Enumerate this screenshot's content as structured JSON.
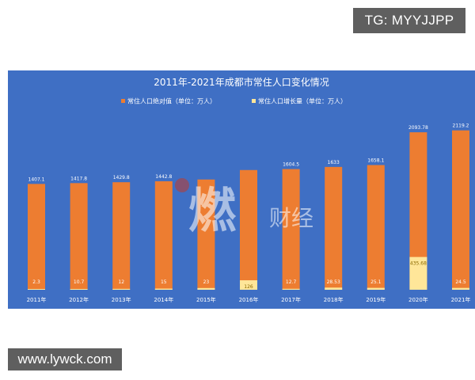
{
  "overlay": {
    "top_right_text": "TG: MYYJJPP",
    "bottom_left_text": "www.lywck.com",
    "watermark_brand": "财经"
  },
  "colors": {
    "background": "#3f6fc4",
    "absolute_series": "#ed7d31",
    "growth_series": "#ffe699",
    "text": "#ffffff"
  },
  "chart_data": {
    "type": "bar",
    "title": "2011年-2021年成都市常住人口变化情况",
    "categories": [
      "2011年",
      "2012年",
      "2013年",
      "2014年",
      "2015年",
      "2016年",
      "2017年",
      "2018年",
      "2019年",
      "2020年",
      "2021年"
    ],
    "series": [
      {
        "name": "常住人口绝对值（单位：万人）",
        "values": [
          1407.1,
          1417.8,
          1429.8,
          1442.8,
          1465.8,
          1591.8,
          1604.5,
          1633,
          1658.1,
          2093.78,
          2119.2
        ],
        "labels": [
          "1407.1",
          "1417.8",
          "1429.8",
          "1442.8",
          "",
          "",
          "1604.5",
          "1633",
          "1658.1",
          "2093.78",
          "2119.2"
        ]
      },
      {
        "name": "常住人口增长量（单位：万人）",
        "values": [
          2.3,
          10.7,
          12,
          15,
          23,
          126,
          12.7,
          28.53,
          25.1,
          435.68,
          24.5
        ],
        "labels": [
          "2.3",
          "10.7",
          "12",
          "15",
          "23",
          "126",
          "12.7",
          "28.53",
          "25.1",
          "435.68",
          "24.5"
        ]
      }
    ],
    "ylim": [
      0,
      2600
    ],
    "grid": false,
    "legend_position": "top"
  }
}
